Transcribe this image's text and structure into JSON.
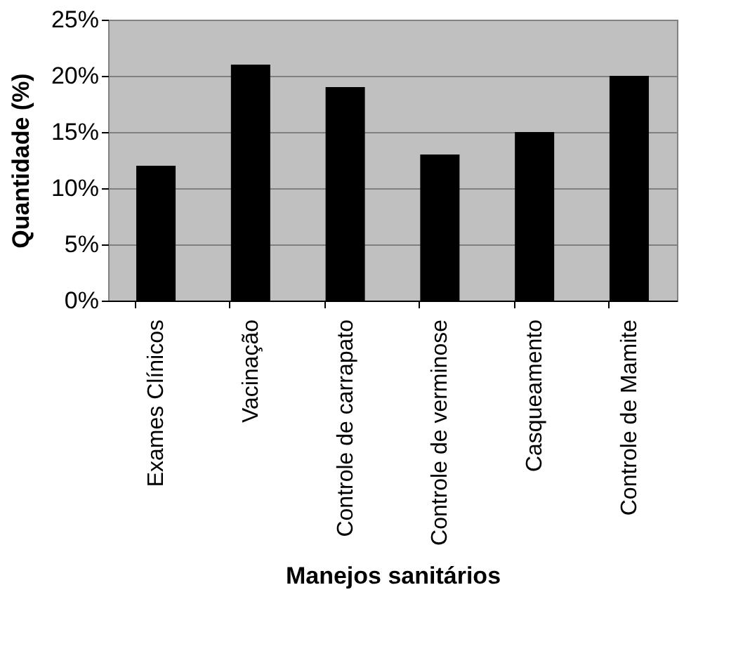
{
  "chart_data": {
    "type": "bar",
    "xlabel": "Manejos sanitários",
    "ylabel": "Quantidade (%)",
    "categories": [
      "Exames Clínicos",
      "Vacinação",
      "Controle de carrapato",
      "Controle de verminose",
      "Casqueamento",
      "Controle de Mamite"
    ],
    "values": [
      12,
      21,
      19,
      13,
      15,
      20
    ],
    "color": "#000000",
    "ylim": [
      0,
      25
    ],
    "yticks": [
      {
        "value": 0,
        "label": "0%"
      },
      {
        "value": 5,
        "label": "5%"
      },
      {
        "value": 10,
        "label": "10%"
      },
      {
        "value": 15,
        "label": "15%"
      },
      {
        "value": 20,
        "label": "20%"
      },
      {
        "value": 25,
        "label": "25%"
      }
    ],
    "grid": "y"
  }
}
